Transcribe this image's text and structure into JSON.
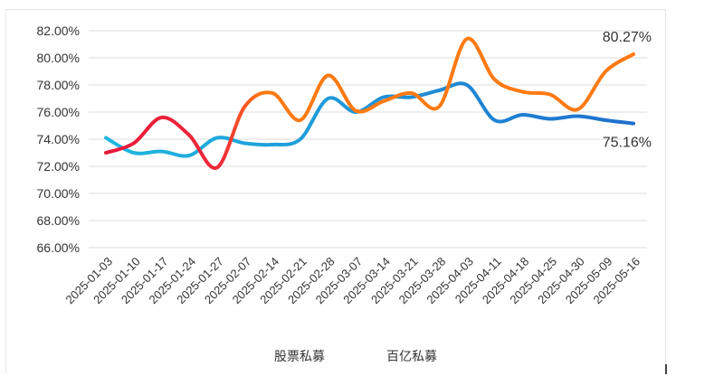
{
  "chart_data": {
    "type": "line",
    "title": "",
    "xlabel": "",
    "ylabel": "",
    "ylim": [
      66,
      82
    ],
    "y_ticks": [
      "82.00%",
      "80.00%",
      "78.00%",
      "76.00%",
      "74.00%",
      "72.00%",
      "70.00%",
      "68.00%",
      "66.00%"
    ],
    "categories": [
      "2025-01-03",
      "2025-01-10",
      "2025-01-17",
      "2025-01-24",
      "2025-01-27",
      "2025-02-07",
      "2025-02-14",
      "2025-02-21",
      "2025-02-28",
      "2025-03-07",
      "2025-03-14",
      "2025-03-21",
      "2025-03-28",
      "2025-04-03",
      "2025-04-11",
      "2025-04-18",
      "2025-04-25",
      "2025-04-30",
      "2025-05-09",
      "2025-05-16"
    ],
    "grid": true,
    "legend_position": "bottom",
    "series": [
      {
        "name": "股票私募",
        "color": "#1aa6d8",
        "values": [
          74.1,
          73.0,
          73.1,
          72.8,
          74.1,
          73.7,
          73.6,
          74.0,
          77.0,
          76.0,
          77.1,
          77.1,
          77.6,
          78.0,
          75.4,
          75.8,
          75.5,
          75.7,
          75.4,
          75.16
        ]
      },
      {
        "name": "百亿私募",
        "color": "#ff7a12",
        "color_start": "#e8173b",
        "values": [
          73.0,
          73.7,
          75.6,
          74.3,
          71.9,
          76.4,
          77.4,
          75.4,
          78.7,
          76.1,
          76.8,
          77.4,
          76.4,
          81.4,
          78.4,
          77.5,
          77.3,
          76.2,
          79.0,
          80.27
        ]
      }
    ],
    "annotations": [
      {
        "series": 1,
        "text": "80.27%"
      },
      {
        "series": 0,
        "text": "75.16%"
      }
    ]
  }
}
